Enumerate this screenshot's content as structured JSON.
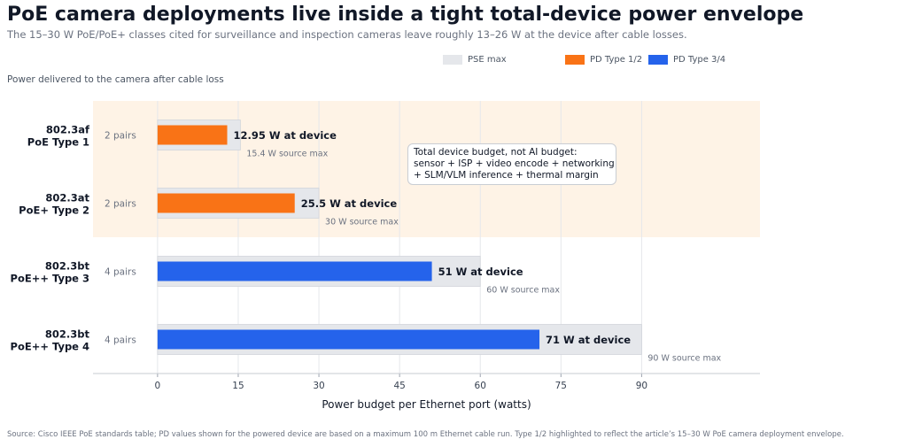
{
  "title": "PoE camera deployments live inside a tight total-device power envelope",
  "subtitle": "The 15–30 W PoE/PoE+ classes cited for surveillance and inspection cameras leave roughly 13–26 W at the device after cable losses.",
  "panel_caption": "Power delivered to the camera after cable loss",
  "source": "Source: Cisco IEEE PoE standards table; PD values shown for the powered device are based on a maximum 100 m Ethernet cable run. Type 1/2 highlighted to reflect the article’s 15–30 W PoE camera deployment envelope.",
  "legend": [
    {
      "label": "PSE max",
      "color": "#e5e7eb"
    },
    {
      "label": "PD Type 1/2",
      "color": "#f97316"
    },
    {
      "label": "PD Type 3/4",
      "color": "#2563eb"
    }
  ],
  "callout": {
    "lines": [
      "Total device budget, not AI budget:",
      "sensor + ISP + video encode + networking",
      "+ SLM/VLM inference + thermal margin"
    ]
  },
  "chart_data": {
    "type": "bar",
    "orientation": "horizontal",
    "xlabel": "Power budget per Ethernet port (watts)",
    "xlim": [
      -12,
      112
    ],
    "xticks": [
      0,
      15,
      30,
      45,
      60,
      75,
      90
    ],
    "grid": true,
    "legend_position": "top-right",
    "highlight_band": {
      "rows": [
        0,
        1
      ],
      "color": "#fef3e6"
    },
    "categories": [
      {
        "line1": "802.3af",
        "line2": "PoE Type 1",
        "pairs": "2 pairs",
        "pse": 15.4,
        "pd": 12.95,
        "pd_label": "12.95 W at device",
        "pse_label": "15.4 W source max",
        "color": "#f97316"
      },
      {
        "line1": "802.3at",
        "line2": "PoE+ Type 2",
        "pairs": "2 pairs",
        "pse": 30,
        "pd": 25.5,
        "pd_label": "25.5 W at device",
        "pse_label": "30 W source max",
        "color": "#f97316"
      },
      {
        "line1": "802.3bt",
        "line2": "PoE++ Type 3",
        "pairs": "4 pairs",
        "pse": 60,
        "pd": 51,
        "pd_label": "51 W at device",
        "pse_label": "60 W source max",
        "color": "#2563eb"
      },
      {
        "line1": "802.3bt",
        "line2": "PoE++ Type 4",
        "pairs": "4 pairs",
        "pse": 90,
        "pd": 71,
        "pd_label": "71 W at device",
        "pse_label": "90 W source max",
        "color": "#2563eb"
      }
    ]
  }
}
